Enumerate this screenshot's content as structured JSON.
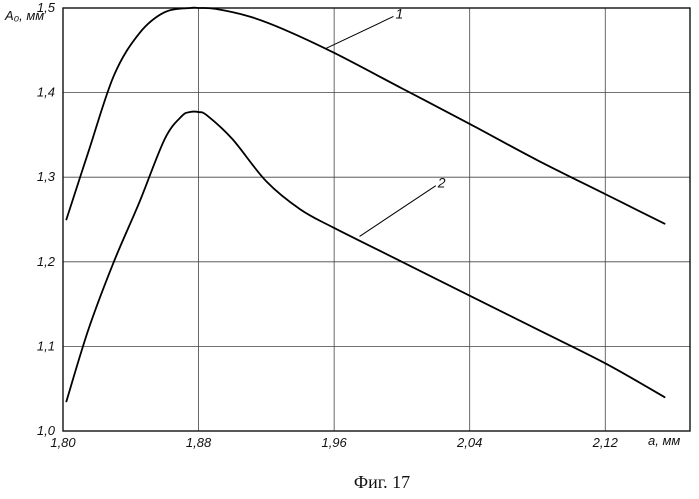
{
  "chart_data": {
    "type": "line",
    "title": "",
    "xlabel": "a, мм",
    "ylabel": "A₀, мм",
    "xlim": [
      1.8,
      2.17
    ],
    "ylim": [
      1.0,
      1.5
    ],
    "grid": true,
    "x_ticks": [
      1.8,
      1.88,
      1.96,
      2.04,
      2.12
    ],
    "x_tick_labels": [
      "1,80",
      "1,88",
      "1,96",
      "2,04",
      "2,12"
    ],
    "y_ticks": [
      1.0,
      1.1,
      1.2,
      1.3,
      1.4,
      1.5
    ],
    "y_tick_labels": [
      "1,0",
      "1,1",
      "1,2",
      "1,3",
      "1,4",
      "1,5"
    ],
    "series": [
      {
        "name": "1",
        "x": [
          1.802,
          1.815,
          1.83,
          1.845,
          1.86,
          1.875,
          1.88,
          1.89,
          1.91,
          1.93,
          1.96,
          2.0,
          2.04,
          2.08,
          2.12,
          2.155
        ],
        "y": [
          1.25,
          1.33,
          1.42,
          1.47,
          1.495,
          1.5,
          1.5,
          1.499,
          1.49,
          1.475,
          1.447,
          1.405,
          1.363,
          1.32,
          1.28,
          1.245
        ]
      },
      {
        "name": "2",
        "x": [
          1.802,
          1.815,
          1.83,
          1.845,
          1.86,
          1.87,
          1.875,
          1.88,
          1.885,
          1.9,
          1.92,
          1.94,
          1.96,
          2.0,
          2.04,
          2.08,
          2.12,
          2.155
        ],
        "y": [
          1.035,
          1.12,
          1.2,
          1.27,
          1.345,
          1.372,
          1.377,
          1.377,
          1.373,
          1.345,
          1.295,
          1.262,
          1.24,
          1.2,
          1.16,
          1.12,
          1.08,
          1.04
        ]
      }
    ],
    "curve_labels": [
      "1",
      "2"
    ]
  },
  "caption": "Фиг. 17"
}
